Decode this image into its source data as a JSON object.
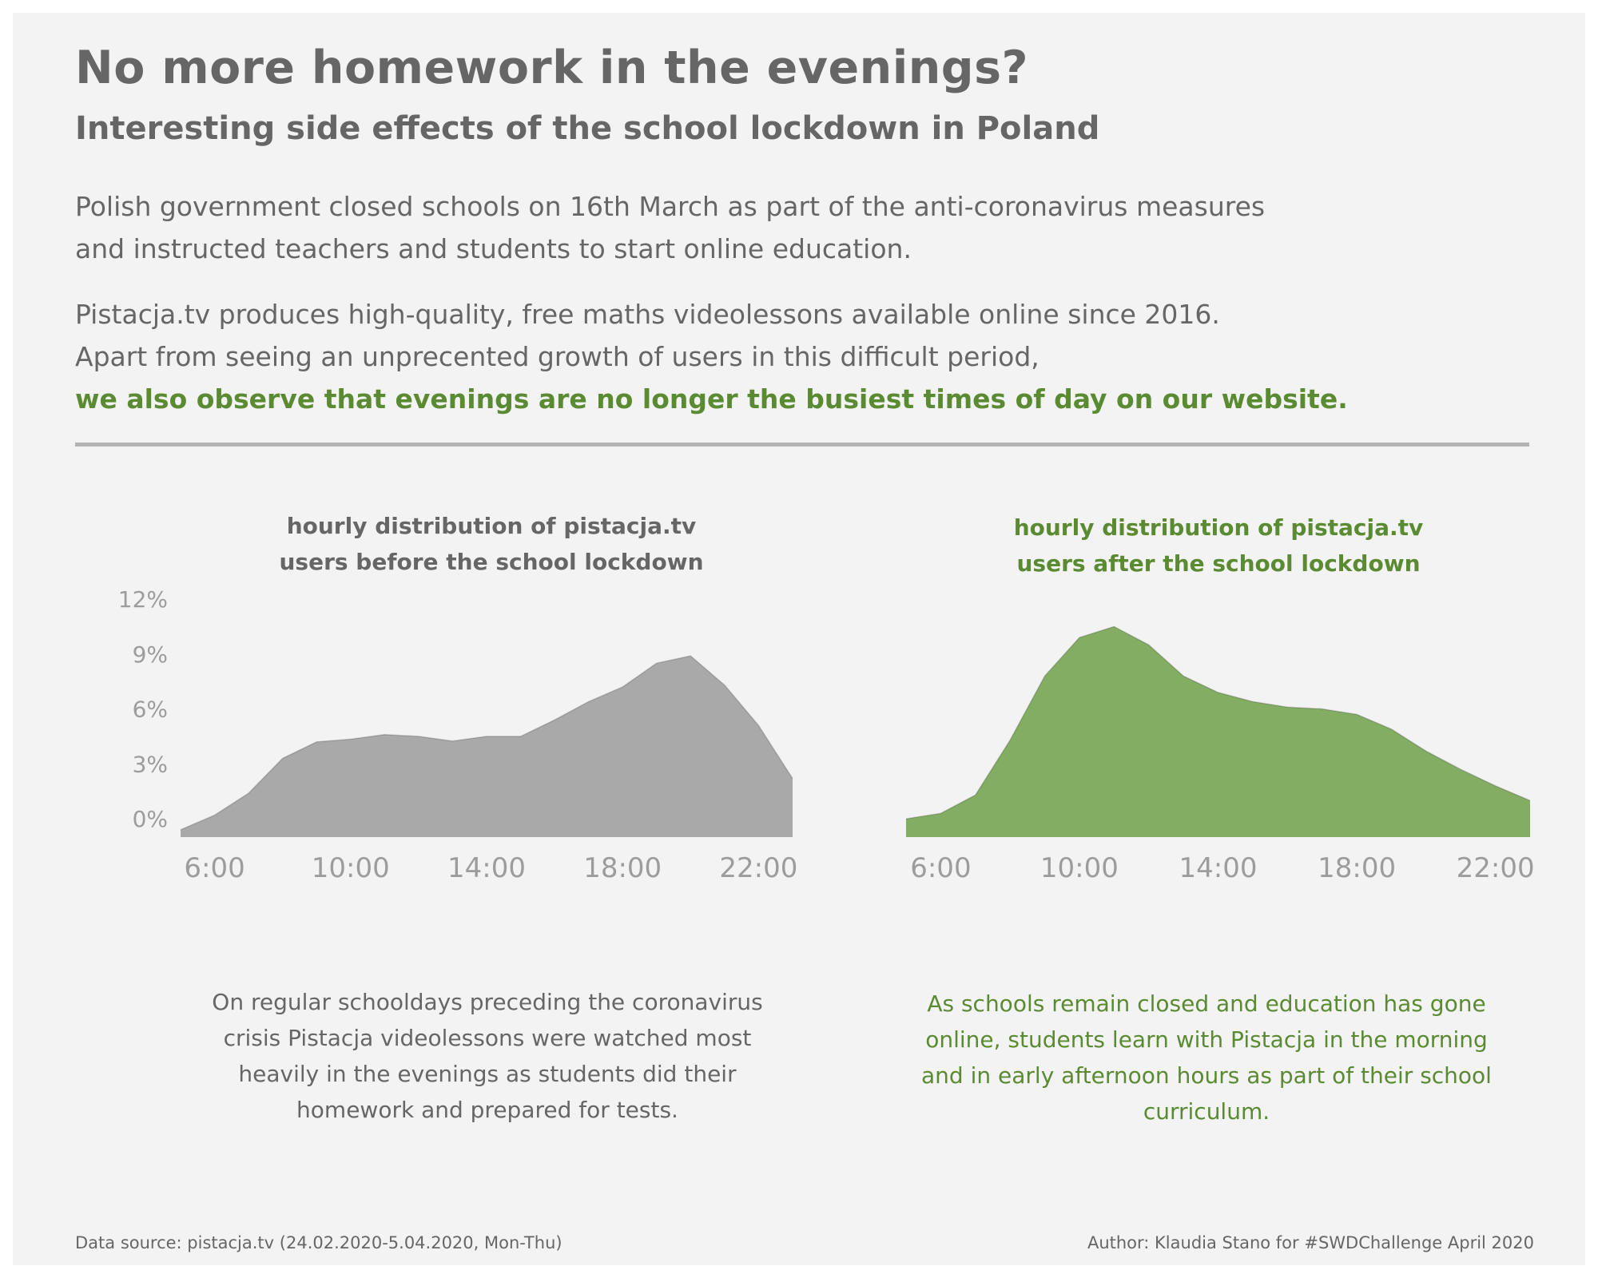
{
  "header": {
    "title": "No more homework in the evenings?",
    "subtitle": "Interesting side effects of the school lockdown in Poland"
  },
  "intro": {
    "paragraph1": [
      "Polish government closed schools on 16th March as part of the anti-coronavirus measures",
      "and instructed teachers and students to start online education."
    ],
    "paragraph2": [
      "Pistacja.tv produces high-quality, free maths videolessons available online since 2016.",
      "Apart from seeing an unprecented growth of users in this difficult period,"
    ],
    "highlight": "we also observe that evenings are no longer the busiest times of day on our website."
  },
  "colors": {
    "background": "#f3f3f3",
    "text_gray": "#666666",
    "accent_green": "#5a8b32",
    "area_gray": "#a9a9a9",
    "area_green": "#82ad63",
    "divider": "#b3b3b3"
  },
  "chart_data": [
    {
      "type": "area",
      "title_lines": [
        "hourly distribution of pistacja.tv",
        "users before the school lockdown"
      ],
      "x": [
        5,
        6,
        7,
        8,
        9,
        10,
        11,
        12,
        13,
        14,
        15,
        16,
        17,
        18,
        19,
        20,
        21,
        22,
        23
      ],
      "values": [
        -0.6,
        0.2,
        1.4,
        3.3,
        4.2,
        4.35,
        4.6,
        4.5,
        4.25,
        4.5,
        4.5,
        5.4,
        6.4,
        7.2,
        8.5,
        8.9,
        7.3,
        5.1,
        2.2
      ],
      "x_ticks": [
        "6:00",
        "10:00",
        "14:00",
        "18:00",
        "22:00"
      ],
      "x_tick_values": [
        6,
        10,
        14,
        18,
        22
      ],
      "y_ticks": [
        "12%",
        "9%",
        "6%",
        "3%",
        "0%"
      ],
      "y_tick_values": [
        12,
        9,
        6,
        3,
        0
      ],
      "xlim": [
        5,
        23
      ],
      "ylim": [
        -1,
        12
      ],
      "grid": false,
      "color": "#a9a9a9",
      "title_color": "#666666"
    },
    {
      "type": "area",
      "title_lines": [
        "hourly distribution of pistacja.tv",
        "users after the school lockdown"
      ],
      "x": [
        5,
        6,
        7,
        8,
        9,
        10,
        11,
        12,
        13,
        14,
        15,
        16,
        17,
        18,
        19,
        20,
        21,
        22,
        23
      ],
      "values": [
        0,
        0.3,
        1.3,
        4.3,
        7.8,
        9.9,
        10.5,
        9.5,
        7.8,
        6.9,
        6.4,
        6.1,
        6.0,
        5.7,
        4.9,
        3.7,
        2.7,
        1.8,
        1.0
      ],
      "x_ticks": [
        "6:00",
        "10:00",
        "14:00",
        "18:00",
        "22:00"
      ],
      "x_tick_values": [
        6,
        10,
        14,
        18,
        22
      ],
      "xlim": [
        5,
        23
      ],
      "ylim": [
        -1,
        12
      ],
      "grid": false,
      "color": "#82ad63",
      "title_color": "#5a8b32"
    }
  ],
  "notes": {
    "before": [
      "On regular schooldays preceding the coronavirus",
      "crisis Pistacja videolessons were watched most",
      "heavily in the evenings as students did their",
      "homework and prepared for tests."
    ],
    "after": [
      "As schools remain closed and education has gone",
      "online, students learn with Pistacja in the morning",
      "and in early afternoon hours as part of their school",
      "curriculum."
    ]
  },
  "footer": {
    "source": "Data source: pistacja.tv (24.02.2020-5.04.2020, Mon-Thu)",
    "author": "Author: Klaudia Stano for #SWDChallenge April 2020"
  }
}
